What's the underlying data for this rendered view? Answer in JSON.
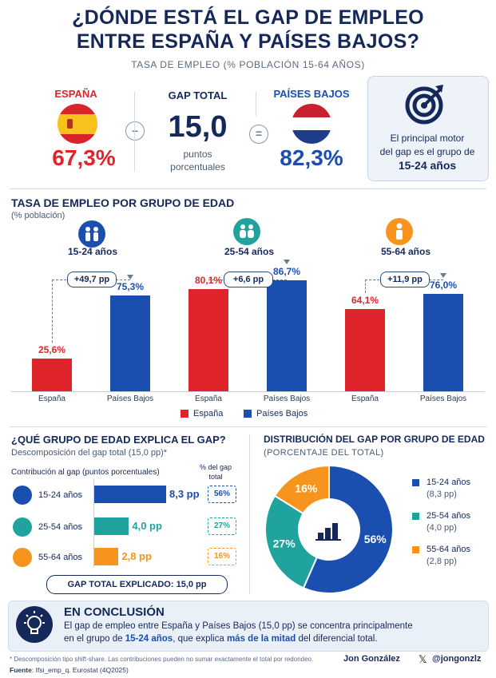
{
  "header": {
    "title_line1": "¿DÓNDE ESTÁ EL GAP DE EMPLEO",
    "title_line2": "ENTRE ESPAÑA Y PAÍSES BAJOS?",
    "subtitle": "TASA DE EMPLEO (% POBLACIÓN 15-64 AÑOS)"
  },
  "summary": {
    "spain_label": "ESPAÑA",
    "spain_value": "67,3%",
    "minus": "–",
    "gap_label": "GAP TOTAL",
    "gap_value": "15,0",
    "gap_unit_1": "puntos",
    "gap_unit_2": "porcentuales",
    "equals": "=",
    "nl_label": "PAÍSES BAJOS",
    "nl_value": "82,3%",
    "motor_1": "El principal motor",
    "motor_2": "del gap es el grupo de",
    "motor_3": "15-24 años"
  },
  "age_section": {
    "title": "TASA DE EMPLEO POR GRUPO DE EDAD",
    "subtitle": "(% población)",
    "legend_spain": "España",
    "legend_nl": "Países Bajos"
  },
  "colors": {
    "spain": "#e0242c",
    "nl": "#1a4fb0",
    "teal": "#20a39e",
    "orange": "#f7941d",
    "navy": "#14285a"
  },
  "chart_data": [
    {
      "type": "bar",
      "title": "TASA DE EMPLEO POR GRUPO DE EDAD",
      "groups": [
        {
          "name": "15-24 años",
          "gap_label": "+49,7 pp",
          "categories": [
            "España",
            "Países Bajos"
          ],
          "values": [
            25.6,
            75.3
          ],
          "labels": [
            "25,6%",
            "75,3%"
          ]
        },
        {
          "name": "25-54 años",
          "gap_label": "+6,6 pp",
          "categories": [
            "España",
            "Países Bajos"
          ],
          "values": [
            80.1,
            86.7
          ],
          "labels": [
            "80,1%",
            "86,7%"
          ]
        },
        {
          "name": "55-64 años",
          "gap_label": "+11,9 pp",
          "categories": [
            "España",
            "Países Bajos"
          ],
          "values": [
            64.1,
            76.0
          ],
          "labels": [
            "64,1%",
            "76,0%"
          ]
        }
      ],
      "legend": [
        "España",
        "Países Bajos"
      ],
      "ylim": [
        0,
        100
      ]
    },
    {
      "type": "bar",
      "orientation": "horizontal",
      "title": "¿QUÉ GRUPO DE EDAD EXPLICA EL GAP?",
      "categories": [
        "15-24 años",
        "25-54 años",
        "55-64 años"
      ],
      "values": [
        8.3,
        4.0,
        2.8
      ],
      "labels": [
        "8,3 pp",
        "4,0 pp",
        "2,8 pp"
      ],
      "share_labels": [
        "56%",
        "27%",
        "16%"
      ]
    },
    {
      "type": "pie",
      "title": "DISTRIBUCIÓN DEL GAP POR GRUPO DE EDAD",
      "categories": [
        "15-24 años",
        "25-54 años",
        "55-64 años"
      ],
      "values": [
        56,
        27,
        16
      ],
      "labels": [
        "56%",
        "27%",
        "16%"
      ]
    }
  ],
  "contrib_section": {
    "title": "¿QUÉ GRUPO DE EDAD EXPLICA EL GAP?",
    "subtitle": "Descomposición del gap total (15,0 pp)*",
    "col1": "Contribución al gap (puntos porcentuales)",
    "col2_1": "% del gap",
    "col2_2": "total",
    "total_label": "GAP TOTAL EXPLICADO:  15,0 pp"
  },
  "dist_section": {
    "title": "DISTRIBUCIÓN DEL GAP POR GRUPO DE EDAD",
    "subtitle": "(PORCENTAJE DEL TOTAL)",
    "legend": [
      {
        "name": "15-24 años",
        "detail": "(8,3 pp)"
      },
      {
        "name": "25-54 años",
        "detail": "(4,0 pp)"
      },
      {
        "name": "55-64 años",
        "detail": "(2,8 pp)"
      }
    ]
  },
  "conclusion": {
    "title": "EN CONCLUSIÓN",
    "line1": "El gap de empleo entre España y Países Bajos (15,0 pp) se concentra principalmente",
    "line2_a": "en el grupo de ",
    "line2_b": "15-24 años",
    "line2_c": ", que explica ",
    "line2_d": "más de la mitad",
    "line2_e": " del diferencial total."
  },
  "footer": {
    "note": "* Descomposición tipo shift-share. Las contribuciones pueden no sumar exactamente el total por redondeo.",
    "source_label": "Fuente",
    "source": ": Ifsi_emp_q. Eurostat (4Q2025)",
    "author": "Jon González",
    "x_symbol": "𝕏",
    "handle": "@jongonzlz"
  }
}
